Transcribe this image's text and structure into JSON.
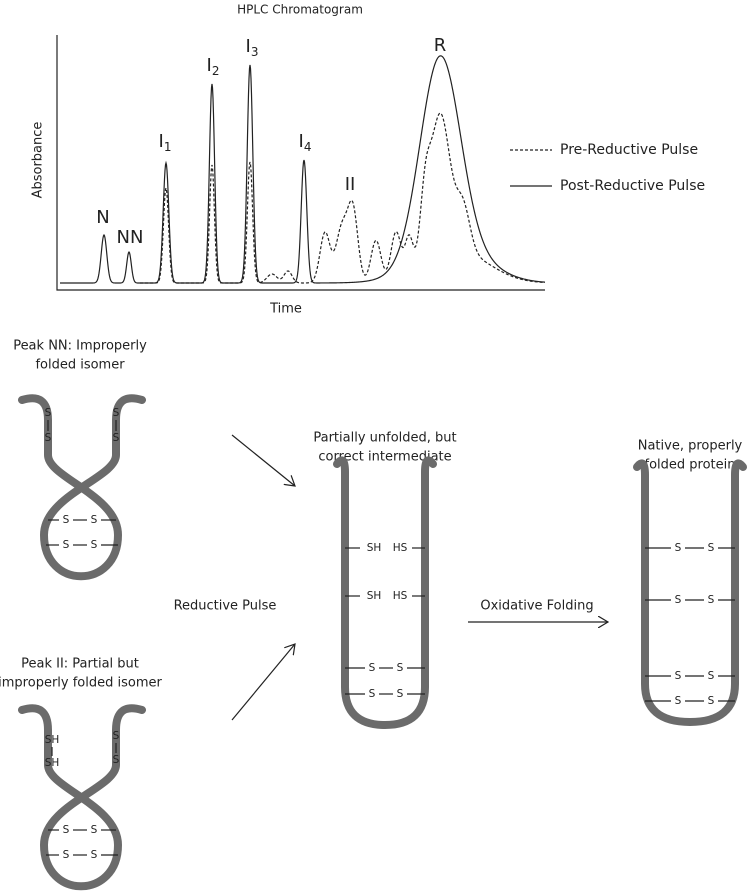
{
  "chromatogram": {
    "title": "HPLC Chromatogram",
    "y_label": "Absorbance",
    "x_label": "Time",
    "peaks": [
      {
        "label": "N"
      },
      {
        "label": "NN"
      },
      {
        "label": "I",
        "subscript": "1"
      },
      {
        "label": "I",
        "subscript": "2"
      },
      {
        "label": "I",
        "subscript": "3"
      },
      {
        "label": "I",
        "subscript": "4"
      },
      {
        "label": "II"
      },
      {
        "label": "R"
      }
    ],
    "legend": [
      {
        "name": "Pre-Reductive Pulse",
        "style": "dashed"
      },
      {
        "name": "Post-Reductive Pulse",
        "style": "solid"
      }
    ]
  },
  "structures": [
    {
      "caption": [
        "Peak NN: Improperly",
        "folded isomer"
      ]
    },
    {
      "caption": [
        "Peak II: Partial but",
        "improperly folded isomer"
      ]
    },
    {
      "caption": [
        "Partially unfolded, but",
        "correct intermediate"
      ]
    },
    {
      "caption": [
        "Native, properly",
        "folded protein"
      ]
    }
  ],
  "arrows": {
    "reduction": "Reductive Pulse",
    "oxidation": "Oxidative Folding"
  },
  "bond_labels": {
    "sulfur": "S",
    "thiol": "SH",
    "thiol_reversed": "HS"
  }
}
